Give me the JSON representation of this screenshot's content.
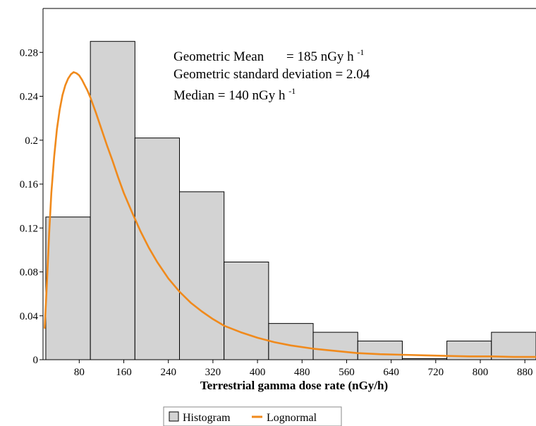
{
  "chart_data": {
    "type": "bar",
    "xlabel": "Terrestrial gamma dose rate (nGy/h)",
    "ylabel": "",
    "xlim": [
      15,
      900
    ],
    "ylim": [
      0,
      0.32
    ],
    "x_ticks": [
      80,
      160,
      240,
      320,
      400,
      480,
      560,
      640,
      720,
      800,
      880
    ],
    "y_ticks": [
      0,
      0.04,
      0.08,
      0.12,
      0.16,
      0.2,
      0.24,
      0.28
    ],
    "y_tick_labels": [
      "0",
      "0.04",
      "0.08",
      "0.12",
      "0.16",
      "0.2",
      "0.24",
      "0.28"
    ],
    "grid": false,
    "legend_position": "bottom-center",
    "series": [
      {
        "name": "Histogram",
        "type": "histogram",
        "color": "#d3d3d3",
        "bins": [
          {
            "start": 20,
            "end": 100,
            "value": 0.13
          },
          {
            "start": 100,
            "end": 180,
            "value": 0.29
          },
          {
            "start": 180,
            "end": 260,
            "value": 0.202
          },
          {
            "start": 260,
            "end": 340,
            "value": 0.153
          },
          {
            "start": 340,
            "end": 420,
            "value": 0.089
          },
          {
            "start": 420,
            "end": 500,
            "value": 0.033
          },
          {
            "start": 500,
            "end": 580,
            "value": 0.025
          },
          {
            "start": 580,
            "end": 660,
            "value": 0.017
          },
          {
            "start": 660,
            "end": 740,
            "value": 0.001
          },
          {
            "start": 740,
            "end": 820,
            "value": 0.017
          },
          {
            "start": 820,
            "end": 900,
            "value": 0.025
          }
        ]
      },
      {
        "name": "Lognormal",
        "type": "line",
        "color": "#f08a1c",
        "x": [
          18,
          22,
          26,
          30,
          35,
          40,
          45,
          50,
          55,
          60,
          65,
          70,
          75,
          80,
          85,
          90,
          95,
          100,
          110,
          120,
          130,
          140,
          150,
          160,
          175,
          190,
          205,
          220,
          240,
          260,
          280,
          300,
          320,
          340,
          370,
          400,
          430,
          460,
          500,
          540,
          580,
          620,
          660,
          700,
          740,
          780,
          820,
          860,
          900
        ],
        "y": [
          0.029,
          0.07,
          0.115,
          0.152,
          0.185,
          0.21,
          0.228,
          0.241,
          0.25,
          0.256,
          0.26,
          0.262,
          0.261,
          0.259,
          0.255,
          0.25,
          0.245,
          0.239,
          0.225,
          0.21,
          0.195,
          0.181,
          0.166,
          0.152,
          0.134,
          0.117,
          0.102,
          0.089,
          0.074,
          0.062,
          0.052,
          0.044,
          0.037,
          0.031,
          0.025,
          0.02,
          0.016,
          0.013,
          0.01,
          0.008,
          0.006,
          0.005,
          0.0045,
          0.004,
          0.0035,
          0.003,
          0.003,
          0.0025,
          0.0025
        ]
      }
    ],
    "annotations": {
      "line1_label": "Geometric Mean",
      "line1_value": "= 185  nGy h",
      "line1_sup": "-1",
      "line2": "Geometric standard deviation  = 2.04",
      "line3_text": "Median  = 140  nGy h",
      "line3_sup": "-1"
    }
  }
}
